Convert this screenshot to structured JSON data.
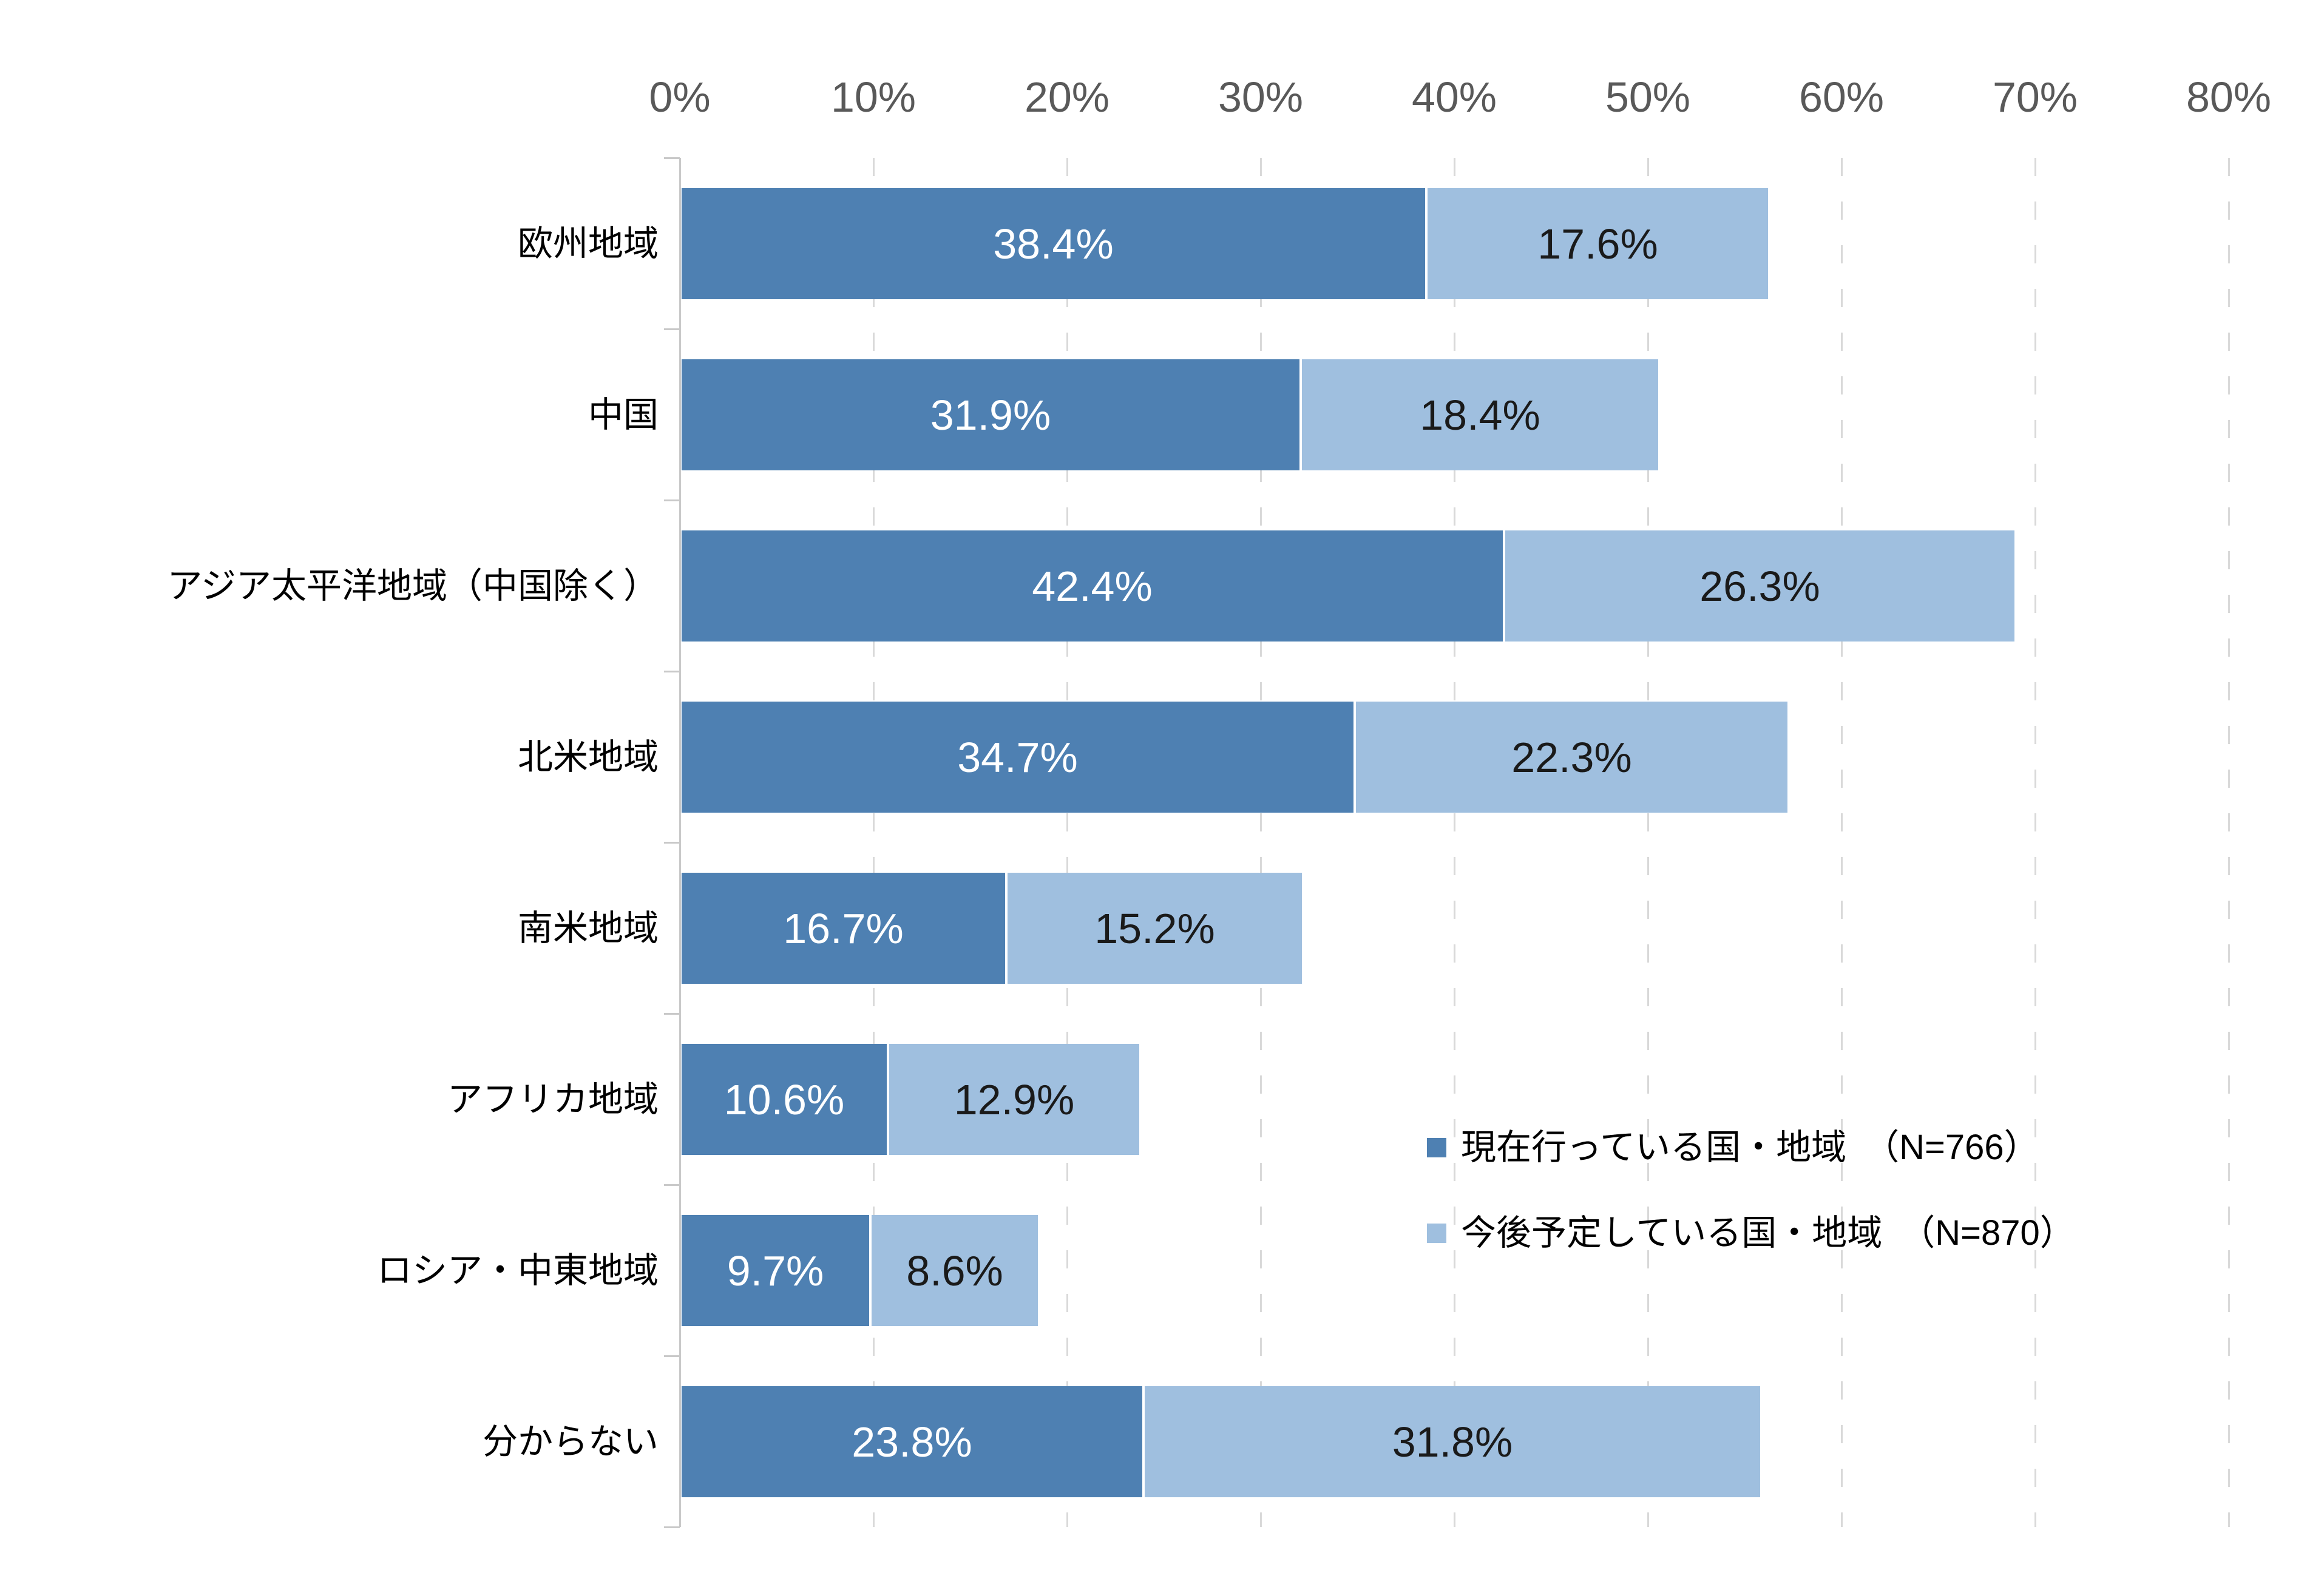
{
  "chart_data": {
    "type": "bar",
    "orientation": "horizontal",
    "stacked": true,
    "title": "",
    "categories": [
      "欧州地域",
      "中国",
      "アジア太平洋地域（中国除く）",
      "北米地域",
      "南米地域",
      "アフリカ地域",
      "ロシア・中東地域",
      "分からない"
    ],
    "series": [
      {
        "name": "現在行っている国・地域　（N=766）",
        "color": "#4E80B2",
        "label_color": "#FFFFFF",
        "values": [
          38.4,
          31.9,
          42.4,
          34.7,
          16.7,
          10.6,
          9.7,
          23.8
        ]
      },
      {
        "name": "今後予定している国・地域　（N=870）",
        "color": "#9FBFDF",
        "label_color": "#1A1A1A",
        "values": [
          17.6,
          18.4,
          26.3,
          22.3,
          15.2,
          12.9,
          8.6,
          31.8
        ]
      }
    ],
    "x_axis": {
      "tick_labels": [
        "0%",
        "10%",
        "20%",
        "30%",
        "40%",
        "50%",
        "60%",
        "70%",
        "80%"
      ],
      "min": 0,
      "max": 80,
      "step": 10,
      "tick_label_color": "#595959"
    },
    "value_suffix": "%",
    "grid": {
      "style": "dashed-vertical",
      "gridline_color": "#D9D9D9",
      "axis_line_color": "#C9C9C9"
    },
    "legend": {
      "position": "inside-right"
    }
  }
}
